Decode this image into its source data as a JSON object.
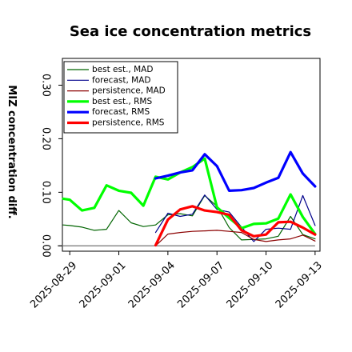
{
  "chart_data": {
    "type": "line",
    "title": "Sea ice concentration metrics",
    "ylabel": "MIZ concentration diff.",
    "xlabel": "",
    "ylim": [
      -0.01,
      0.35
    ],
    "yticks": [
      0.0,
      0.1,
      0.2,
      0.3
    ],
    "ytick_labels": [
      "0.00",
      "0.10",
      "0.20",
      "0.30"
    ],
    "xlim": [
      -0.3,
      10.2
    ],
    "xticks": [
      0,
      2,
      4,
      6,
      8,
      10
    ],
    "xtick_labels": [
      "2025-08-29",
      "2025-09-01",
      "2025-09-04",
      "2025-09-07",
      "2025-09-10",
      "2025-09-13"
    ],
    "xtick_colors": [
      "#000000",
      "#000000",
      "#008000",
      "#000000",
      "#000000",
      "#000000"
    ],
    "legend_position": "upper-left",
    "series": [
      {
        "name": "best est., MAD",
        "color": "#006400",
        "width": 1.2,
        "x": [
          -0.5,
          0,
          0.5,
          1,
          1.5,
          2,
          2.5,
          3,
          3.5,
          4,
          4.5,
          5,
          5.5,
          6,
          6.5,
          7,
          7.5,
          8,
          8.5,
          9,
          9.5,
          10
        ],
        "values": [
          0.039,
          0.038,
          0.035,
          0.029,
          0.031,
          0.066,
          0.043,
          0.036,
          0.039,
          0.058,
          0.06,
          0.056,
          0.094,
          0.074,
          0.034,
          0.011,
          0.012,
          0.013,
          0.018,
          0.055,
          0.021,
          0.013
        ]
      },
      {
        "name": "forecast,  MAD",
        "color": "#00008b",
        "width": 1.2,
        "x": [
          3.5,
          4,
          4.5,
          5,
          5.5,
          6,
          6.5,
          7,
          7.5,
          8,
          8.5,
          9,
          9.5,
          10
        ],
        "values": [
          0.025,
          0.061,
          0.055,
          0.059,
          0.095,
          0.068,
          0.063,
          0.035,
          0.008,
          0.031,
          0.033,
          0.031,
          0.094,
          0.038
        ]
      },
      {
        "name": "persistence, MAD",
        "color": "#8b0000",
        "width": 1.2,
        "x": [
          3.5,
          4,
          4.5,
          5,
          5.5,
          6,
          6.5,
          7,
          7.5,
          8,
          8.5,
          9,
          9.5,
          10
        ],
        "values": [
          0.0,
          0.022,
          0.025,
          0.027,
          0.028,
          0.029,
          0.027,
          0.025,
          0.012,
          0.008,
          0.011,
          0.013,
          0.02,
          0.009
        ]
      },
      {
        "name": "best est., RMS",
        "color": "#00ff00",
        "width": 3.2,
        "x": [
          -0.5,
          0,
          0.5,
          1,
          1.5,
          2,
          2.5,
          3,
          3.5,
          4,
          4.5,
          5,
          5.5,
          6,
          6.5,
          7,
          7.5,
          8,
          8.5,
          9,
          9.5,
          10
        ],
        "values": [
          0.088,
          0.086,
          0.066,
          0.071,
          0.113,
          0.103,
          0.099,
          0.075,
          0.129,
          0.124,
          0.137,
          0.147,
          0.163,
          0.072,
          0.052,
          0.033,
          0.041,
          0.042,
          0.051,
          0.096,
          0.054,
          0.022
        ]
      },
      {
        "name": "forecast,  RMS",
        "color": "#0000ff",
        "width": 3.2,
        "x": [
          3.5,
          4,
          4.5,
          5,
          5.5,
          6,
          6.5,
          7,
          7.5,
          8,
          8.5,
          9,
          9.5,
          10
        ],
        "values": [
          0.126,
          0.131,
          0.137,
          0.141,
          0.171,
          0.149,
          0.103,
          0.104,
          0.108,
          0.118,
          0.127,
          0.175,
          0.135,
          0.111
        ]
      },
      {
        "name": "persistence, RMS",
        "color": "#ff0000",
        "width": 3.2,
        "x": [
          3.5,
          4,
          4.5,
          5,
          5.5,
          6,
          6.5,
          7,
          7.5,
          8,
          8.5,
          9,
          9.5,
          10
        ],
        "values": [
          0.001,
          0.049,
          0.068,
          0.074,
          0.066,
          0.063,
          0.058,
          0.029,
          0.018,
          0.021,
          0.044,
          0.045,
          0.034,
          0.021
        ]
      }
    ],
    "zero_line": {
      "y": 0.0,
      "color": "#808080"
    }
  }
}
